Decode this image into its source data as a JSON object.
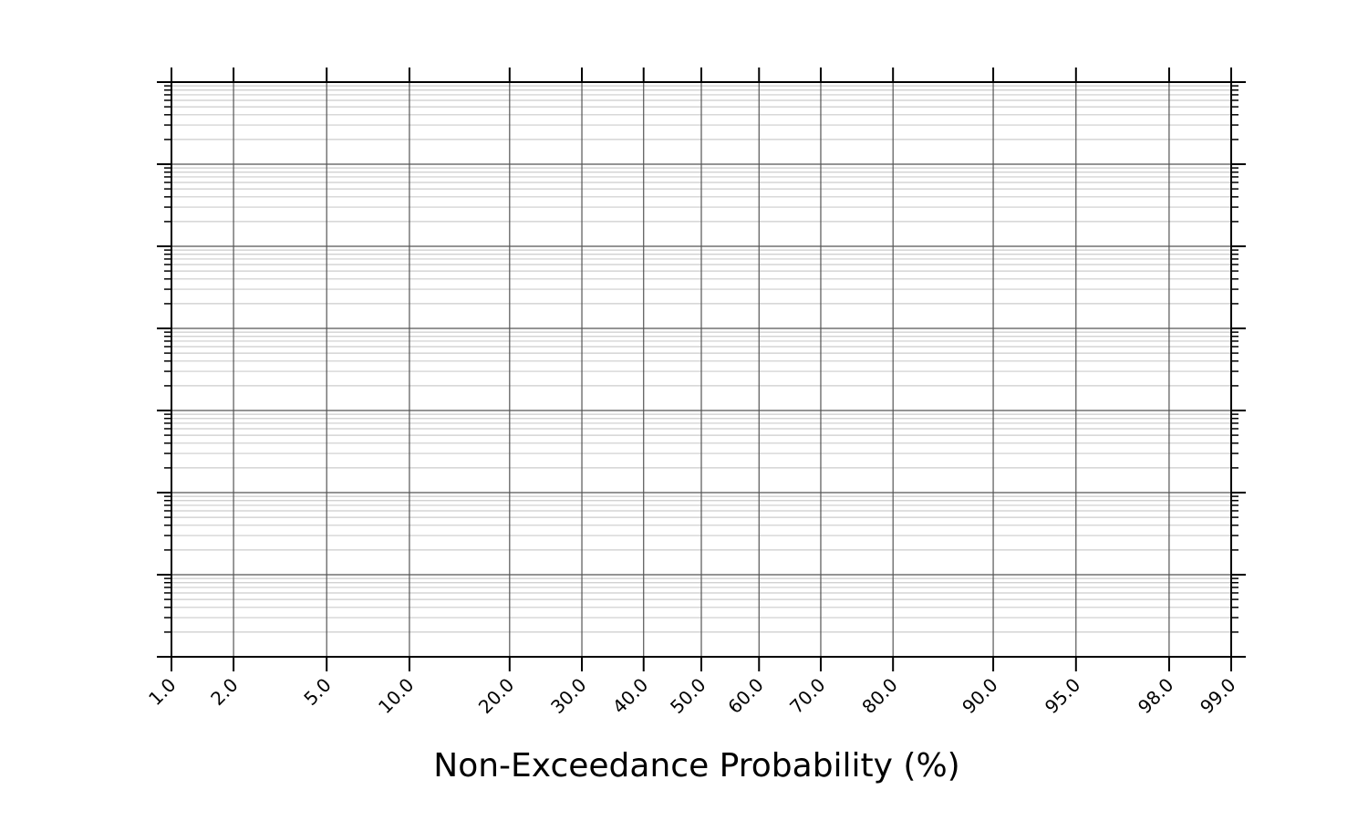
{
  "chart_data": {
    "type": "line",
    "title": "",
    "xlabel": "Non-Exceedance Probability (%)",
    "ylabel": "",
    "x_scale": "probability",
    "y_scale": "log",
    "x_ticks": [
      1.0,
      2.0,
      5.0,
      10.0,
      20.0,
      30.0,
      40.0,
      50.0,
      60.0,
      70.0,
      80.0,
      90.0,
      95.0,
      98.0,
      99.0
    ],
    "x_tick_labels": [
      "1.0",
      "2.0",
      "5.0",
      "10.0",
      "20.0",
      "30.0",
      "40.0",
      "50.0",
      "60.0",
      "70.0",
      "80.0",
      "90.0",
      "95.0",
      "98.0",
      "99.0"
    ],
    "xlim": [
      1.0,
      99.0
    ],
    "y_decades": 7,
    "y_tick_labels_shown": false,
    "grid": true,
    "series": []
  }
}
